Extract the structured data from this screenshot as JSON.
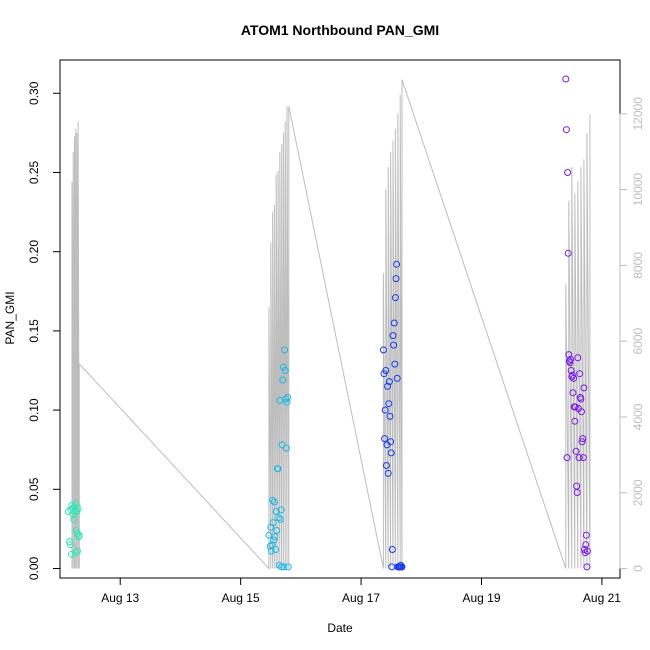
{
  "chart_data": {
    "type": "scatter",
    "title": "ATOM1 Northbound PAN_GMI",
    "xlabel": "Date",
    "ylabel": "PAN_GMI",
    "x_ticks": [
      "Aug 13",
      "Aug 15",
      "Aug 17",
      "Aug 19",
      "Aug 21"
    ],
    "x_tick_days": [
      13,
      15,
      17,
      19,
      21
    ],
    "xlim": [
      12.0,
      21.3
    ],
    "ylim": [
      -0.006,
      0.321
    ],
    "y_ticks": [
      0.0,
      0.05,
      0.1,
      0.15,
      0.2,
      0.25,
      0.3
    ],
    "y_tick_labels": [
      "0.00",
      "0.05",
      "0.10",
      "0.15",
      "0.20",
      "0.25",
      "0.30"
    ],
    "y2lim": [
      -250,
      13420
    ],
    "y2_ticks": [
      0,
      2000,
      4000,
      6000,
      8000,
      10000,
      12000
    ],
    "y2_tick_labels": [
      "0",
      "2000",
      "4000",
      "6000",
      "8000",
      "10000",
      "12000"
    ],
    "colors": {
      "line": "#bdbdbd",
      "right_axis": "#bdbdbd",
      "cluster_1": "#2ee8b8",
      "cluster_2": "#1ab8e8",
      "cluster_3": "#1a3cf0",
      "cluster_4": "#7a1ae8"
    },
    "line_series": {
      "x": [
        12.2,
        12.22,
        12.24,
        12.26,
        12.28,
        12.3,
        12.32,
        15.47,
        15.5,
        15.53,
        15.56,
        15.59,
        15.62,
        15.65,
        15.68,
        15.71,
        15.74,
        15.77,
        15.8,
        17.37,
        17.41,
        17.45,
        17.49,
        17.53,
        17.57,
        17.61,
        17.65,
        17.68,
        20.4,
        20.45,
        20.5,
        20.55,
        20.6,
        20.65,
        20.7,
        20.75,
        20.8
      ],
      "y": [
        10200,
        11000,
        11400,
        11600,
        11500,
        11800,
        5400,
        6900,
        8600,
        9400,
        9600,
        10400,
        10500,
        11000,
        11200,
        11500,
        11800,
        12200,
        12200,
        7800,
        10000,
        10600,
        11000,
        11300,
        11600,
        12000,
        12500,
        12900,
        7500,
        9700,
        10600,
        9900,
        10200,
        10600,
        10800,
        11500,
        12000
      ]
    },
    "series": [
      {
        "color_key": "cluster_1",
        "x": [
          12.14,
          12.16,
          12.17,
          12.19,
          12.2,
          12.21,
          12.22,
          12.23,
          12.24,
          12.25,
          12.26,
          12.27,
          12.28,
          12.29,
          12.3,
          12.31,
          12.32,
          12.18,
          12.26,
          12.29
        ],
        "y": [
          0.036,
          0.017,
          0.015,
          0.009,
          0.04,
          0.038,
          0.034,
          0.031,
          0.039,
          0.036,
          0.041,
          0.024,
          0.036,
          0.022,
          0.038,
          0.02,
          0.021,
          0.037,
          0.01,
          0.011
        ]
      },
      {
        "color_key": "cluster_2",
        "x": [
          15.47,
          15.49,
          15.5,
          15.51,
          15.52,
          15.53,
          15.54,
          15.55,
          15.56,
          15.57,
          15.58,
          15.59,
          15.6,
          15.61,
          15.62,
          15.63,
          15.64,
          15.65,
          15.66,
          15.67,
          15.68,
          15.69,
          15.7,
          15.71,
          15.72,
          15.73,
          15.74,
          15.75,
          15.76,
          15.77,
          15.78,
          15.79
        ],
        "y": [
          0.021,
          0.014,
          0.026,
          0.011,
          0.015,
          0.043,
          0.029,
          0.018,
          0.042,
          0.02,
          0.012,
          0.036,
          0.024,
          0.063,
          0.063,
          0.032,
          0.002,
          0.106,
          0.031,
          0.037,
          0.001,
          0.078,
          0.119,
          0.127,
          0.001,
          0.138,
          0.125,
          0.107,
          0.076,
          0.105,
          0.108,
          0.001
        ]
      },
      {
        "color_key": "cluster_3",
        "x": [
          17.37,
          17.38,
          17.39,
          17.4,
          17.41,
          17.42,
          17.43,
          17.44,
          17.45,
          17.46,
          17.47,
          17.48,
          17.49,
          17.5,
          17.51,
          17.52,
          17.53,
          17.54,
          17.55,
          17.56,
          17.57,
          17.58,
          17.59,
          17.6,
          17.61,
          17.62,
          17.63,
          17.64,
          17.65,
          17.66,
          17.67,
          17.68
        ],
        "y": [
          0.138,
          0.123,
          0.082,
          0.1,
          0.125,
          0.065,
          0.078,
          0.115,
          0.06,
          0.104,
          0.118,
          0.096,
          0.08,
          0.073,
          0.001,
          0.012,
          0.147,
          0.141,
          0.155,
          0.129,
          0.171,
          0.183,
          0.192,
          0.12,
          0.001,
          0.001,
          0.001,
          0.001,
          0.001,
          0.002,
          0.001,
          0.001
        ]
      },
      {
        "color_key": "cluster_4",
        "x": [
          20.4,
          20.41,
          20.42,
          20.43,
          20.44,
          20.45,
          20.46,
          20.47,
          20.48,
          20.49,
          20.5,
          20.51,
          20.52,
          20.53,
          20.54,
          20.55,
          20.56,
          20.57,
          20.58,
          20.59,
          20.6,
          20.61,
          20.62,
          20.63,
          20.64,
          20.65,
          20.66,
          20.67,
          20.68,
          20.69,
          20.7,
          20.71,
          20.72,
          20.73,
          20.74,
          20.75,
          20.76
        ],
        "y": [
          0.309,
          0.277,
          0.07,
          0.25,
          0.199,
          0.135,
          0.131,
          0.13,
          0.132,
          0.125,
          0.121,
          0.122,
          0.111,
          0.12,
          0.102,
          0.093,
          0.102,
          0.074,
          0.052,
          0.048,
          0.133,
          0.101,
          0.07,
          0.123,
          0.108,
          0.107,
          0.099,
          0.08,
          0.082,
          0.07,
          0.114,
          0.012,
          0.01,
          0.015,
          0.021,
          0.001,
          0.011
        ]
      }
    ]
  }
}
